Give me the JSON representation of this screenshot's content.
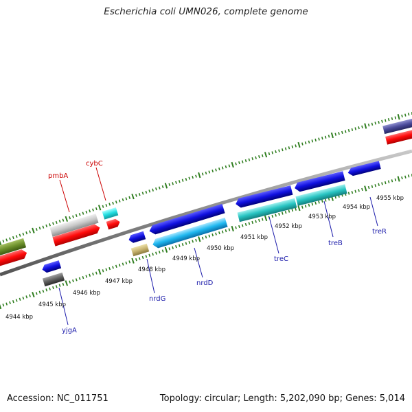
{
  "title": "Escherichia coli UMN026, complete genome",
  "footer": {
    "accession": "Accession: NC_011751",
    "topology": "Topology: circular; Length: 5,202,090 bp; Genes: 5,014"
  },
  "colors": {
    "backbone": "#8a8a8a",
    "tick": "#2e7d1e",
    "gene_label_fwd": "#cc0000",
    "gene_label_rev": "#1a1aaa"
  },
  "kbp_labels": [
    "4944 kbp",
    "4945 kbp",
    "4946 kbp",
    "4947 kbp",
    "4948 kbp",
    "4949 kbp",
    "4950 kbp",
    "4951 kbp",
    "4952 kbp",
    "4953 kbp",
    "4954 kbp",
    "4955 kbp"
  ],
  "genes": [
    {
      "name": "pmbA",
      "strand": "forward"
    },
    {
      "name": "cybC",
      "strand": "forward"
    },
    {
      "name": "yjgA",
      "strand": "reverse"
    },
    {
      "name": "nrdG",
      "strand": "reverse"
    },
    {
      "name": "nrdD",
      "strand": "reverse"
    },
    {
      "name": "treC",
      "strand": "reverse"
    },
    {
      "name": "treB",
      "strand": "reverse"
    },
    {
      "name": "treR",
      "strand": "reverse"
    }
  ]
}
